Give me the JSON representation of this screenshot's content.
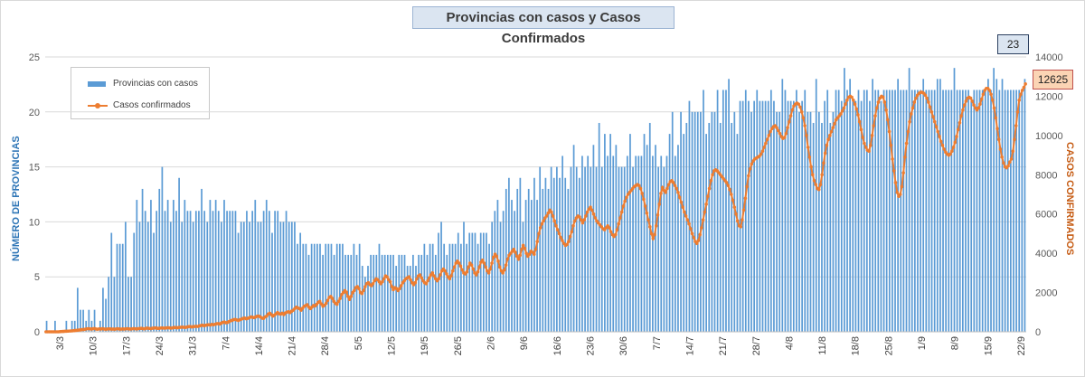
{
  "chart_data": {
    "type": "bar+line",
    "title": "Provincias con casos y Casos Confirmados",
    "ylabel_left": "NÚMERO DE PROVINCIAS",
    "ylabel_right": "CASOS CONFIRMADOS",
    "ylim_left": [
      0,
      25
    ],
    "ylim_right": [
      0,
      14000
    ],
    "yticks_left": [
      0,
      5,
      10,
      15,
      20,
      25
    ],
    "yticks_right": [
      0,
      2000,
      4000,
      6000,
      8000,
      10000,
      12000,
      14000
    ],
    "xtick_labels": [
      "3/3",
      "10/3",
      "17/3",
      "24/3",
      "31/3",
      "7/4",
      "14/4",
      "21/4",
      "28/4",
      "5/5",
      "12/5",
      "19/5",
      "26/5",
      "2/6",
      "9/6",
      "16/6",
      "23/6",
      "30/6",
      "7/7",
      "14/7",
      "21/7",
      "28/7",
      "4/8",
      "11/8",
      "18/8",
      "25/8",
      "1/9",
      "8/9",
      "15/9",
      "22/9"
    ],
    "start_day_label": "3/3",
    "grid": true,
    "legend_position": "top-left",
    "series": [
      {
        "name": "Provincias con casos",
        "kind": "bar",
        "axis": "left",
        "color": "#5b9bd5",
        "values": [
          1,
          0,
          0,
          1,
          0,
          0,
          0,
          1,
          0,
          1,
          1,
          4,
          2,
          2,
          1,
          2,
          1,
          2,
          0,
          1,
          4,
          3,
          5,
          9,
          5,
          8,
          8,
          8,
          10,
          5,
          5,
          9,
          12,
          10,
          13,
          11,
          10,
          12,
          9,
          11,
          13,
          15,
          11,
          12,
          10,
          12,
          11,
          14,
          10,
          12,
          11,
          11,
          10,
          11,
          11,
          13,
          11,
          10,
          12,
          11,
          12,
          11,
          10,
          12,
          11,
          11,
          11,
          11,
          9,
          10,
          10,
          11,
          10,
          11,
          12,
          10,
          10,
          11,
          12,
          11,
          9,
          11,
          11,
          10,
          10,
          11,
          10,
          10,
          10,
          8,
          9,
          8,
          8,
          7,
          8,
          8,
          8,
          8,
          7,
          8,
          8,
          8,
          7,
          8,
          8,
          8,
          7,
          7,
          7,
          8,
          7,
          8,
          6,
          5,
          6,
          7,
          7,
          7,
          8,
          7,
          7,
          7,
          7,
          7,
          6,
          7,
          7,
          7,
          6,
          6,
          7,
          6,
          7,
          7,
          8,
          7,
          8,
          8,
          7,
          9,
          10,
          8,
          7,
          8,
          8,
          8,
          9,
          8,
          10,
          8,
          9,
          9,
          9,
          8,
          9,
          9,
          9,
          8,
          10,
          11,
          12,
          10,
          11,
          13,
          14,
          12,
          11,
          13,
          14,
          10,
          12,
          13,
          12,
          14,
          12,
          15,
          13,
          14,
          13,
          15,
          14,
          15,
          14,
          16,
          14,
          13,
          15,
          17,
          15,
          14,
          16,
          15,
          16,
          15,
          17,
          15,
          19,
          15,
          18,
          16,
          18,
          16,
          17,
          15,
          15,
          15,
          16,
          18,
          15,
          16,
          16,
          16,
          18,
          17,
          19,
          16,
          17,
          15,
          16,
          15,
          16,
          18,
          20,
          16,
          17,
          20,
          18,
          19,
          21,
          20,
          20,
          20,
          20,
          22,
          18,
          19,
          20,
          20,
          22,
          19,
          22,
          22,
          23,
          19,
          20,
          18,
          21,
          21,
          22,
          21,
          20,
          21,
          22,
          21,
          21,
          21,
          21,
          22,
          21,
          20,
          20,
          23,
          22,
          21,
          21,
          21,
          22,
          20,
          21,
          22,
          20,
          20,
          19,
          23,
          20,
          19,
          21,
          22,
          19,
          20,
          22,
          22,
          21,
          24,
          22,
          23,
          21,
          21,
          22,
          21,
          22,
          22,
          21,
          23,
          22,
          22,
          21,
          22,
          22,
          22,
          22,
          22,
          23,
          22,
          22,
          22,
          24,
          22,
          22,
          22,
          22,
          23,
          22,
          22,
          22,
          22,
          23,
          23,
          22,
          22,
          22,
          22,
          24,
          22,
          22,
          22,
          22,
          22,
          21,
          22,
          22,
          22,
          22,
          22,
          23,
          22,
          24,
          23,
          22,
          23,
          22,
          22,
          22,
          22,
          22,
          22,
          22,
          23
        ]
      },
      {
        "name": "Casos confirmados",
        "kind": "line",
        "axis": "right",
        "color": "#ed7d31",
        "values": [
          0,
          0,
          0,
          0,
          0,
          0,
          0,
          0,
          0,
          10,
          15,
          20,
          25,
          30,
          35,
          40,
          45,
          50,
          60,
          70,
          80,
          90,
          100,
          110,
          120,
          130,
          150,
          160,
          150,
          140,
          155,
          170,
          140,
          130,
          150,
          140,
          160,
          145,
          130,
          140,
          150,
          145,
          135,
          140,
          130,
          150,
          155,
          140,
          135,
          145,
          140,
          150,
          160,
          145,
          140,
          150,
          165,
          155,
          145,
          160,
          170,
          175,
          160,
          150,
          180,
          190,
          170,
          160,
          180,
          190,
          200,
          180,
          175,
          190,
          200,
          190,
          185,
          200,
          210,
          200,
          190,
          200,
          220,
          215,
          205,
          220,
          230,
          240,
          230,
          220,
          240,
          260,
          270,
          250,
          260,
          270,
          280,
          270,
          300,
          320,
          340,
          310,
          330,
          350,
          360,
          340,
          380,
          360,
          380,
          410,
          420,
          400,
          440,
          480,
          500,
          460,
          480,
          520,
          560,
          590,
          620,
          630,
          600,
          580,
          620,
          650,
          680,
          700,
          660,
          690,
          720,
          760,
          740,
          720,
          760,
          790,
          800,
          760,
          700,
          680,
          760,
          800,
          900,
          950,
          880,
          800,
          850,
          920,
          980,
          920,
          900,
          950,
          880,
          960,
          1000,
          1020,
          980,
          1050,
          1100,
          1180,
          1250,
          1220,
          1180,
          1100,
          1200,
          1300,
          1340,
          1380,
          1260,
          1180,
          1260,
          1340,
          1320,
          1400,
          1500,
          1550,
          1420,
          1300,
          1350,
          1450,
          1600,
          1750,
          1800,
          1700,
          1550,
          1450,
          1400,
          1550,
          1700,
          1900,
          2000,
          2100,
          2020,
          1800,
          1650,
          1800,
          2000,
          2100,
          2250,
          2300,
          2200,
          2000,
          1950,
          2100,
          2300,
          2450,
          2500,
          2400,
          2350,
          2450,
          2600,
          2700,
          2650,
          2550,
          2450,
          2550,
          2700,
          2850,
          2800,
          2650,
          2550,
          2300,
          2150,
          2250,
          2200,
          2100,
          2200,
          2350,
          2500,
          2600,
          2700,
          2750,
          2800,
          2650,
          2500,
          2400,
          2500,
          2700,
          2850,
          2900,
          2750,
          2600,
          2500,
          2450,
          2600,
          2750,
          2900,
          3000,
          2850,
          2700,
          2600,
          2700,
          2900,
          3100,
          3200,
          3100,
          2950,
          2800,
          2700,
          2850,
          3100,
          3300,
          3500,
          3600,
          3500,
          3350,
          3150,
          3000,
          2950,
          3050,
          3300,
          3500,
          3400,
          3200,
          3000,
          2900,
          3050,
          3300,
          3550,
          3650,
          3500,
          3300,
          3100,
          3000,
          3200,
          3500,
          3800,
          3950,
          3850,
          3600,
          3300,
          3100,
          3000,
          3150,
          3400,
          3700,
          3900,
          4000,
          4100,
          4200,
          4050,
          3850,
          3700,
          3900,
          4200,
          4400,
          4250,
          4000,
          3850,
          3950,
          4100,
          4050,
          3950,
          4200,
          4600,
          5000,
          5300,
          5500,
          5650,
          5800,
          5900,
          6050,
          6200,
          6100,
          5900,
          5650,
          5400,
          5200,
          5000,
          4800,
          4650,
          4500,
          4400,
          4450,
          4600,
          4850,
          5100,
          5400,
          5650,
          5800,
          5900,
          5850,
          5700,
          5550,
          5700,
          5900,
          6100,
          6250,
          6350,
          6200,
          6000,
          5800,
          5650,
          5550,
          5450,
          5350,
          5250,
          5200,
          5300,
          5400,
          5300,
          5100,
          4950,
          4850,
          4950,
          5200,
          5500,
          5800,
          6100,
          6400,
          6650,
          6850,
          7000,
          7100,
          7200,
          7300,
          7400,
          7450,
          7500,
          7450,
          7300,
          7050,
          6750,
          6400,
          6050,
          5700,
          5350,
          5000,
          4750,
          4950,
          5400,
          5950,
          6500,
          7050,
          7350,
          7200,
          7100,
          7300,
          7500,
          7650,
          7700,
          7600,
          7450,
          7300,
          7100,
          6850,
          6600,
          6350,
          6100,
          5900,
          5700,
          5500,
          5250,
          5000,
          4800,
          4600,
          4500,
          4650,
          4950,
          5300,
          5700,
          6100,
          6500,
          6900,
          7300,
          7700,
          8000,
          8200,
          8250,
          8200,
          8100,
          8000,
          7900,
          7800,
          7700,
          7600,
          7450,
          7250,
          7000,
          6700,
          6350,
          6000,
          5650,
          5400,
          5350,
          5700,
          6200,
          6800,
          7400,
          7950,
          8300,
          8550,
          8700,
          8800,
          8850,
          8900,
          8950,
          9050,
          9200,
          9400,
          9600,
          9800,
          10000,
          10200,
          10350,
          10450,
          10500,
          10400,
          10250,
          10100,
          9950,
          9850,
          9900,
          10100,
          10400,
          10700,
          11000,
          11300,
          11500,
          11600,
          11650,
          11600,
          11450,
          11200,
          10900,
          10500,
          10000,
          9400,
          8900,
          8400,
          8000,
          7700,
          7500,
          7300,
          7250,
          7500,
          8000,
          8600,
          9100,
          9500,
          9800,
          10000,
          10200,
          10400,
          10600,
          10800,
          10900,
          11000,
          11100,
          11250,
          11400,
          11600,
          11800,
          11950,
          12000,
          11950,
          11800,
          11600,
          11350,
          11050,
          10700,
          10300,
          9900,
          9600,
          9400,
          9250,
          9200,
          9500,
          10000,
          10500,
          11000,
          11400,
          11700,
          11900,
          12000,
          11950,
          11700,
          11300,
          10800,
          10200,
          9500,
          8800,
          8200,
          7600,
          7100,
          6900,
          7000,
          7400,
          8100,
          8900,
          9600,
          10200,
          10700,
          11100,
          11400,
          11700,
          11900,
          12050,
          12150,
          12200,
          12200,
          12150,
          12050,
          11900,
          11700,
          11450,
          11200,
          10950,
          10700,
          10450,
          10200,
          9950,
          9700,
          9500,
          9300,
          9150,
          9050,
          9000,
          9050,
          9200,
          9400,
          9650,
          9950,
          10300,
          10650,
          11000,
          11300,
          11550,
          11750,
          11900,
          11950,
          11900,
          11750,
          11550,
          11400,
          11300,
          11400,
          11600,
          11850,
          12100,
          12300,
          12400,
          12400,
          12300,
          12100,
          11800,
          11400,
          10900,
          10350,
          9800,
          9300,
          8900,
          8600,
          8400,
          8350,
          8450,
          8650,
          8800,
          9200,
          9800,
          10500,
          11200,
          11800,
          12100,
          12300,
          12450,
          12625
        ]
      }
    ],
    "badges": {
      "last_provinces": "23",
      "last_cases": "12625"
    }
  }
}
